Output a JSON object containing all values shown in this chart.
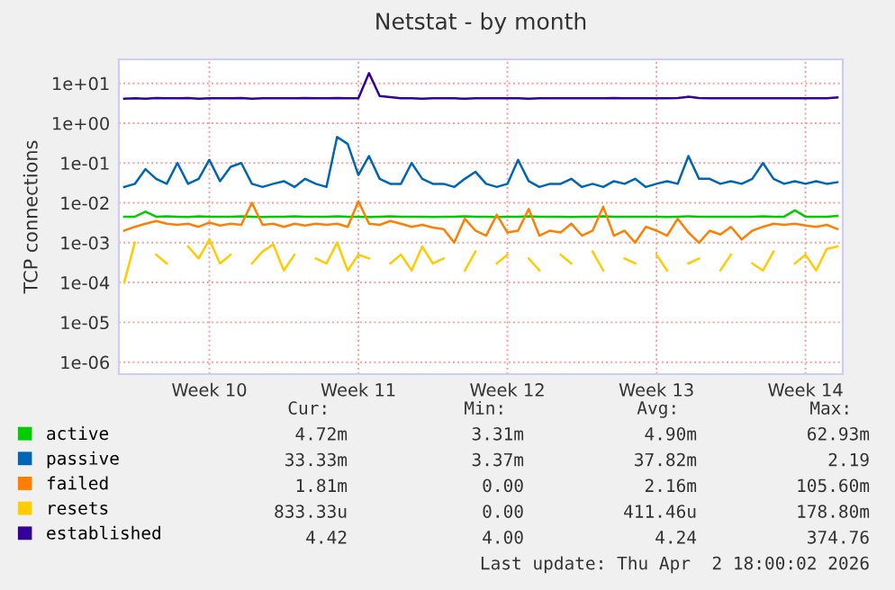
{
  "chart_data": {
    "type": "line",
    "title": "Netstat - by month",
    "ylabel": "TCP connections",
    "categories": [
      null,
      null,
      null,
      null,
      null,
      null,
      null,
      null,
      "Week 10",
      null,
      null,
      null,
      null,
      null,
      null,
      null,
      null,
      null,
      null,
      null,
      null,
      null,
      "Week 11",
      null,
      null,
      null,
      null,
      null,
      null,
      null,
      null,
      null,
      null,
      null,
      null,
      null,
      "Week 12",
      null,
      null,
      null,
      null,
      null,
      null,
      null,
      null,
      null,
      null,
      null,
      null,
      null,
      "Week 13",
      null,
      null,
      null,
      null,
      null,
      null,
      null,
      null,
      null,
      null,
      null,
      null,
      null,
      "Week 14",
      null,
      null,
      null
    ],
    "log": "y",
    "ylim": [
      5e-07,
      40
    ],
    "yticks": [
      {
        "value": 1e-06,
        "label": "1e-06"
      },
      {
        "value": 1e-05,
        "label": "1e-05"
      },
      {
        "value": 0.0001,
        "label": "1e-04"
      },
      {
        "value": 0.001,
        "label": "1e-03"
      },
      {
        "value": 0.01,
        "label": "1e-02"
      },
      {
        "value": 0.1,
        "label": "1e-01"
      },
      {
        "value": 1,
        "label": "1e+00"
      },
      {
        "value": 10,
        "label": "1e+01"
      }
    ],
    "grid": true,
    "legend": "bottom left",
    "series": [
      {
        "name": "active",
        "color": "#00cc00",
        "values": [
          0.0045,
          0.0045,
          0.006,
          0.0045,
          0.0046,
          0.0045,
          0.0044,
          0.0046,
          0.0045,
          0.0045,
          0.0045,
          0.0046,
          0.0045,
          0.0044,
          0.0045,
          0.0045,
          0.0046,
          0.0045,
          0.0045,
          0.0045,
          0.0046,
          0.0045,
          0.0045,
          0.0044,
          0.0045,
          0.0046,
          0.0045,
          0.0045,
          0.0045,
          0.0044,
          0.0045,
          0.0045,
          0.0046,
          0.0045,
          0.0045,
          0.0044,
          0.0045,
          0.0045,
          0.0046,
          0.0045,
          0.0045,
          0.0045,
          0.0044,
          0.0045,
          0.0045,
          0.0046,
          0.0045,
          0.0045,
          0.0045,
          0.0045,
          0.0045,
          0.0044,
          0.0045,
          0.0046,
          0.0045,
          0.0045,
          0.0045,
          0.0045,
          0.0045,
          0.0045,
          0.0046,
          0.0045,
          0.0045,
          0.0065,
          0.0045,
          0.0045,
          0.0045,
          0.0047
        ]
      },
      {
        "name": "passive",
        "color": "#0066b3",
        "values": [
          0.025,
          0.03,
          0.07,
          0.04,
          0.03,
          0.1,
          0.03,
          0.04,
          0.12,
          0.035,
          0.08,
          0.1,
          0.03,
          0.025,
          0.03,
          0.035,
          0.025,
          0.04,
          0.03,
          0.025,
          0.45,
          0.3,
          0.05,
          0.15,
          0.04,
          0.03,
          0.03,
          0.1,
          0.04,
          0.03,
          0.03,
          0.025,
          0.04,
          0.06,
          0.03,
          0.025,
          0.03,
          0.12,
          0.035,
          0.025,
          0.03,
          0.03,
          0.04,
          0.025,
          0.03,
          0.025,
          0.035,
          0.03,
          0.04,
          0.025,
          0.03,
          0.035,
          0.03,
          0.15,
          0.04,
          0.04,
          0.03,
          0.035,
          0.03,
          0.04,
          0.1,
          0.04,
          0.03,
          0.035,
          0.03,
          0.035,
          0.03,
          0.033
        ]
      },
      {
        "name": "failed",
        "color": "#ff8000",
        "values": [
          0.002,
          0.0025,
          0.003,
          0.0035,
          0.003,
          0.0028,
          0.003,
          0.0025,
          0.0032,
          0.0027,
          0.003,
          0.0028,
          0.01,
          0.0028,
          0.003,
          0.0025,
          0.003,
          0.0027,
          0.003,
          0.0028,
          0.003,
          0.0025,
          0.011,
          0.003,
          0.0028,
          0.0035,
          0.003,
          0.0025,
          0.0028,
          0.0024,
          0.0022,
          0.001,
          0.004,
          0.002,
          0.0015,
          0.005,
          0.0018,
          0.002,
          0.007,
          0.0015,
          0.002,
          0.0018,
          0.003,
          0.0015,
          0.002,
          0.008,
          0.0015,
          0.002,
          0.001,
          0.0025,
          0.002,
          0.0015,
          0.004,
          0.0018,
          0.001,
          0.002,
          0.0016,
          0.0025,
          0.0012,
          0.002,
          0.0025,
          0.003,
          0.0028,
          0.003,
          0.0027,
          0.0025,
          0.0028,
          0.0022
        ]
      },
      {
        "name": "resets",
        "color": "#ffcc00",
        "values": [
          0.0001,
          0.001,
          null,
          0.0005,
          0.0003,
          null,
          0.0008,
          0.0004,
          0.0012,
          0.0003,
          0.0005,
          null,
          0.0003,
          0.0006,
          0.0009,
          0.0002,
          0.0005,
          null,
          0.0004,
          0.0003,
          0.001,
          0.0002,
          0.0005,
          0.0004,
          null,
          0.0003,
          0.0005,
          0.0002,
          0.0008,
          0.0003,
          0.0004,
          null,
          0.0002,
          0.0006,
          null,
          0.0003,
          0.0005,
          null,
          0.0004,
          0.0002,
          null,
          0.0005,
          0.0003,
          null,
          0.0006,
          0.0002,
          null,
          0.0004,
          0.0003,
          null,
          0.0005,
          0.0002,
          null,
          0.0003,
          0.0004,
          null,
          0.0002,
          0.0005,
          null,
          0.0003,
          0.0002,
          0.0006,
          null,
          0.0003,
          0.0005,
          0.0002,
          0.0007,
          0.0008
        ]
      },
      {
        "name": "established",
        "color": "#330099",
        "values": [
          4.1,
          4.2,
          4.1,
          4.3,
          4.2,
          4.2,
          4.3,
          4.1,
          4.2,
          4.2,
          4.2,
          4.3,
          4.1,
          4.2,
          4.2,
          4.2,
          4.2,
          4.3,
          4.2,
          4.2,
          4.3,
          4.2,
          4.2,
          18,
          4.8,
          4.5,
          4.2,
          4.2,
          4.1,
          4.2,
          4.2,
          4.2,
          4.1,
          4.2,
          4.2,
          4.2,
          4.2,
          4.2,
          4.1,
          4.2,
          4.2,
          4.2,
          4.2,
          4.2,
          4.2,
          4.2,
          4.3,
          4.2,
          4.2,
          4.2,
          4.2,
          4.2,
          4.3,
          4.6,
          4.3,
          4.2,
          4.2,
          4.2,
          4.2,
          4.2,
          4.2,
          4.2,
          4.2,
          4.2,
          4.2,
          4.2,
          4.2,
          4.4
        ]
      }
    ],
    "annotations": [
      "Cur:",
      "Min:",
      "Avg:",
      "Max:",
      "4.72m",
      "3.31m",
      "4.90m",
      "62.93m",
      "33.33m",
      "3.37m",
      "37.82m",
      "2.19",
      "1.81m",
      "0.00",
      "2.16m",
      "105.60m",
      "833.33u",
      "0.00",
      "411.46u",
      "178.80m",
      "4.42",
      "4.00",
      "4.24",
      "374.76",
      "Last update: Thu Apr  2 18:00:02 2026"
    ]
  }
}
